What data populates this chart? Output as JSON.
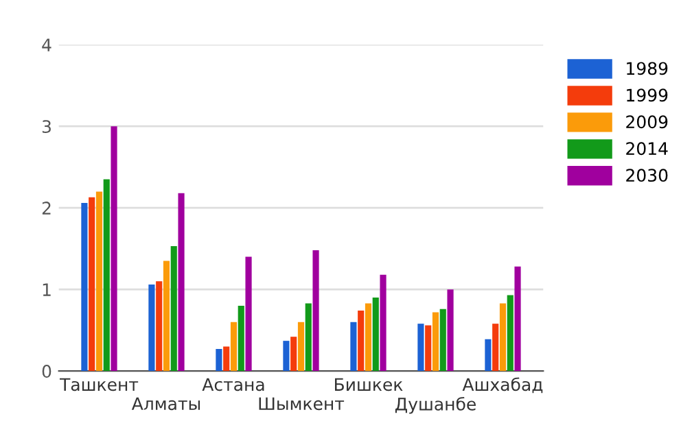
{
  "chart_data": {
    "type": "bar",
    "categories": [
      "Ташкент",
      "Алматы",
      "Астана",
      "Шымкент",
      "Бишкек",
      "Душанбе",
      "Ашхабад"
    ],
    "series": [
      {
        "name": "1989",
        "color": "#1c62d4",
        "values": [
          2.06,
          1.06,
          0.27,
          0.37,
          0.6,
          0.58,
          0.39
        ]
      },
      {
        "name": "1999",
        "color": "#f43c0c",
        "values": [
          2.13,
          1.1,
          0.3,
          0.42,
          0.74,
          0.56,
          0.58
        ]
      },
      {
        "name": "2009",
        "color": "#fb9b0a",
        "values": [
          2.2,
          1.35,
          0.6,
          0.6,
          0.83,
          0.72,
          0.83
        ]
      },
      {
        "name": "2014",
        "color": "#129a1a",
        "values": [
          2.35,
          1.53,
          0.8,
          0.83,
          0.9,
          0.76,
          0.93
        ]
      },
      {
        "name": "2030",
        "color": "#a0009e",
        "values": [
          3.0,
          2.18,
          1.4,
          1.48,
          1.18,
          1.0,
          1.28
        ]
      }
    ],
    "ylim": [
      0,
      4
    ],
    "yticks": [
      0,
      1,
      2,
      3,
      4
    ],
    "grid": "y",
    "legend": "top right"
  }
}
